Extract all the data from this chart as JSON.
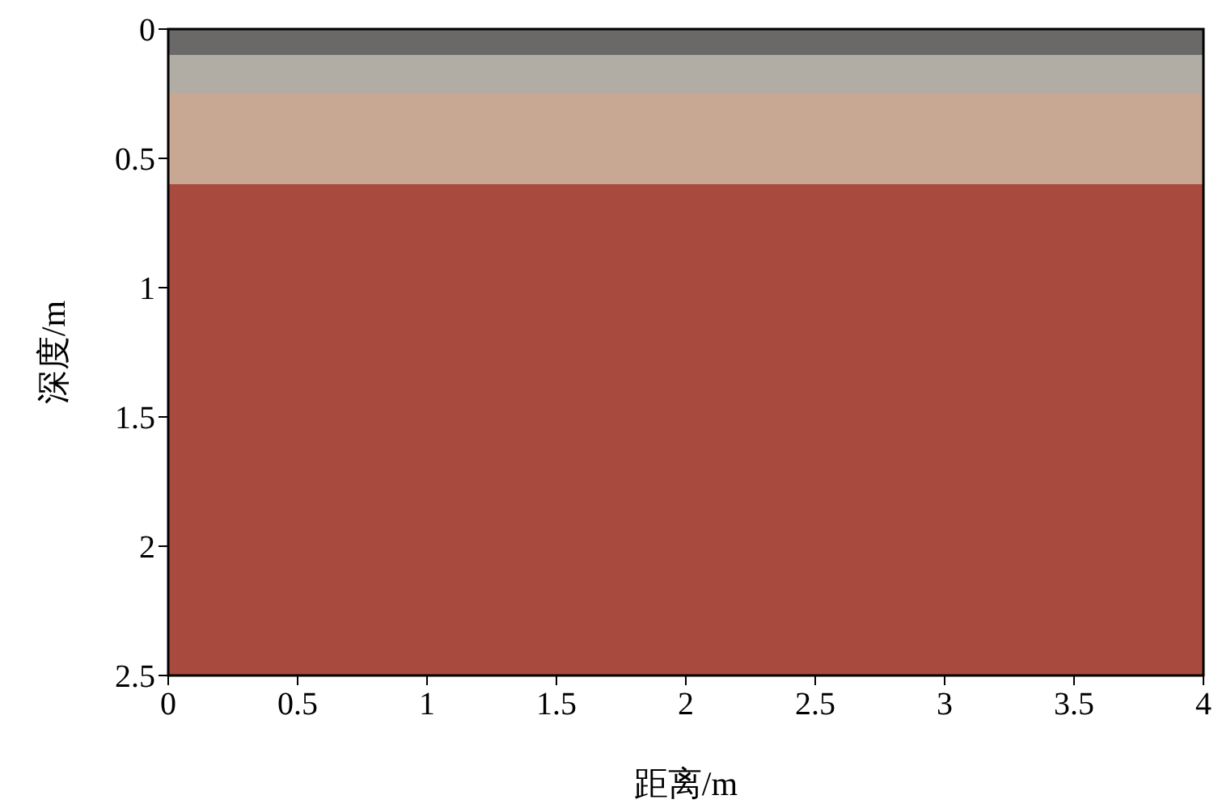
{
  "chart_data": {
    "type": "area",
    "stacked": true,
    "xlabel": "距离/m",
    "ylabel": "深度/m",
    "xlim": [
      0,
      4
    ],
    "ylim": [
      2.5,
      0
    ],
    "xticks": [
      0,
      0.5,
      1,
      1.5,
      2,
      2.5,
      3,
      3.5,
      4
    ],
    "yticks": [
      0,
      0.5,
      1,
      1.5,
      2,
      2.5
    ],
    "x": [
      0,
      4
    ],
    "series": [
      {
        "color": "#6b6868",
        "values": [
          0.1,
          0.1
        ]
      },
      {
        "color": "#b2ada4",
        "values": [
          0.15,
          0.15
        ]
      },
      {
        "color": "#c8a893",
        "values": [
          0.35,
          0.35
        ]
      },
      {
        "color": "#a84b3e",
        "values": [
          1.9,
          1.9
        ]
      }
    ]
  }
}
